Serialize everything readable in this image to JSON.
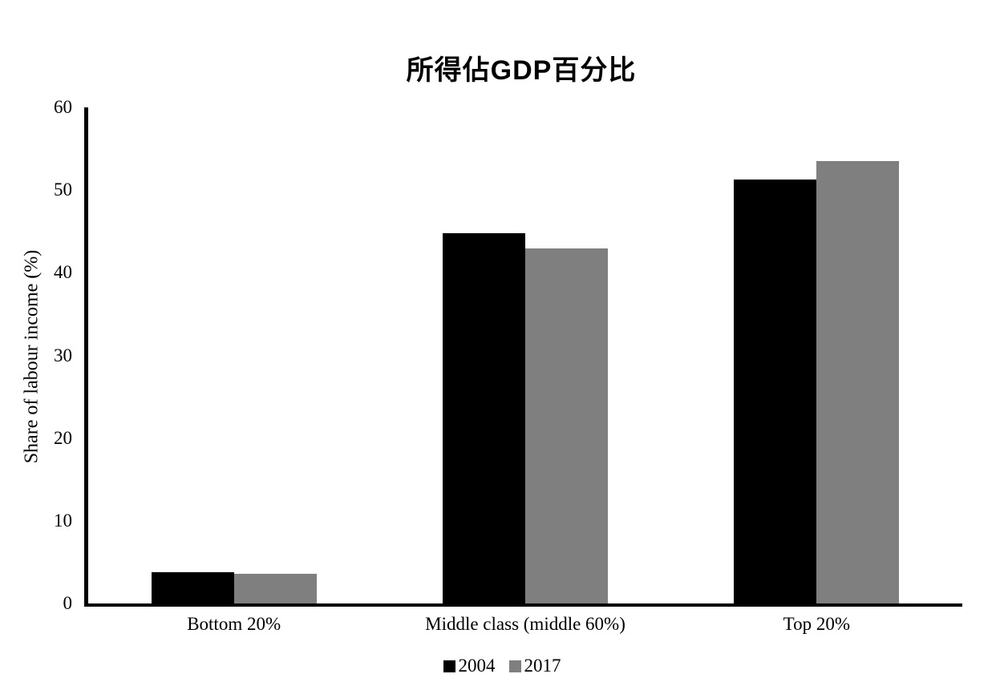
{
  "chart_data": {
    "type": "bar",
    "title": "所得佔GDP百分比",
    "ylabel": "Share of labour income (%)",
    "xlabel": "",
    "categories": [
      "Bottom 20%",
      "Middle class (middle 60%)",
      "Top 20%"
    ],
    "series": [
      {
        "name": "2004",
        "color": "#000000",
        "values": [
          3.8,
          44.8,
          51.3
        ]
      },
      {
        "name": "2017",
        "color": "#7f7f7f",
        "values": [
          3.6,
          42.9,
          53.5
        ]
      }
    ],
    "ylim": [
      0,
      60
    ],
    "yticks": [
      0,
      10,
      20,
      30,
      40,
      50,
      60
    ],
    "grid": false,
    "legend_position": "bottom",
    "background_color": "#ffffff",
    "axis_color": "#000000"
  }
}
